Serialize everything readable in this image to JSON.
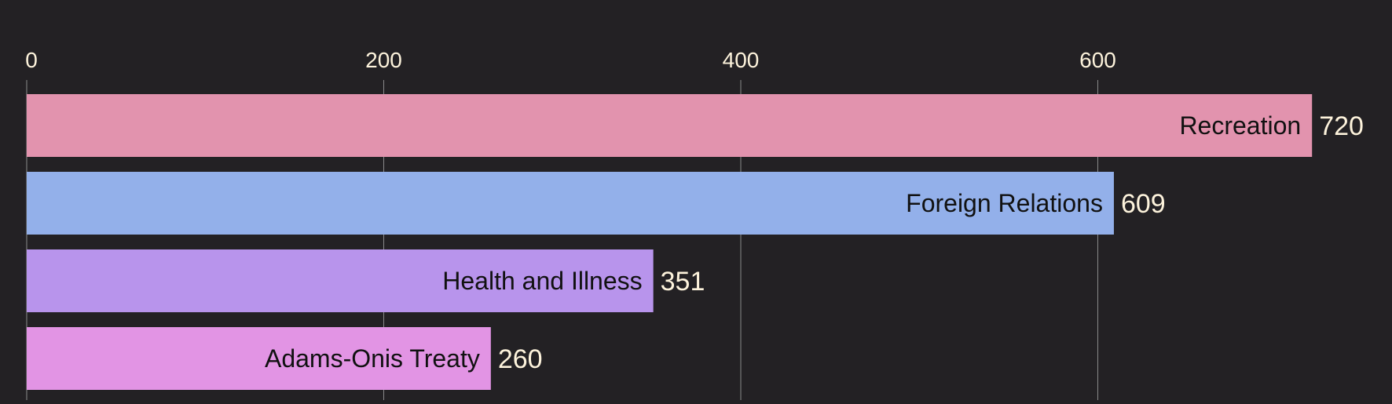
{
  "chart_data": {
    "type": "bar",
    "orientation": "horizontal",
    "categories": [
      "Recreation",
      "Foreign Relations",
      "Health and Illness",
      "Adams-Onis Treaty"
    ],
    "values": [
      720,
      609,
      351,
      260
    ],
    "colors": [
      "#e293ae",
      "#93b0ea",
      "#b894ec",
      "#e294e4"
    ],
    "x_ticks": [
      0,
      200,
      400,
      600
    ],
    "xlim": [
      0,
      750
    ],
    "axis_position": "top",
    "grid": true,
    "title": "",
    "xlabel": "",
    "ylabel": ""
  },
  "theme": {
    "background": "#232124",
    "text_color": "#fdf3dc",
    "label_color": "#111111",
    "grid_color": "#8a8a8a"
  }
}
